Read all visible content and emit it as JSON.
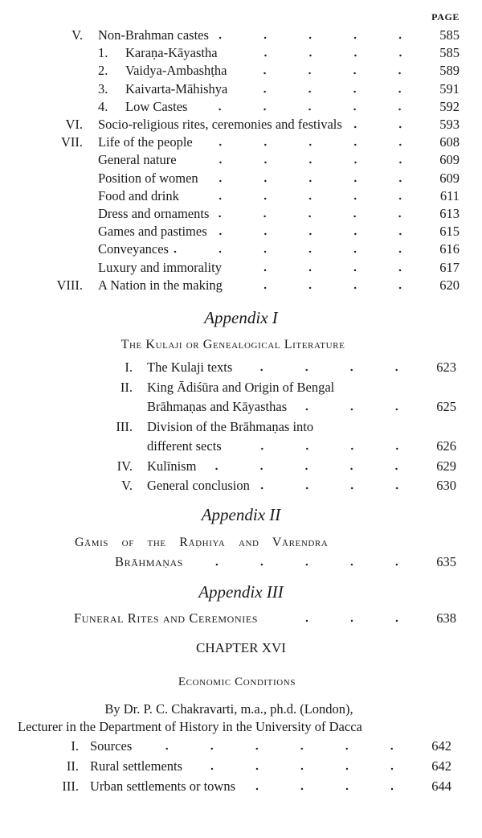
{
  "page_label": "PAGE",
  "section1": [
    {
      "num": "V.",
      "sub": "",
      "text": "Non-Brahman castes",
      "page": "585"
    },
    {
      "num": "",
      "sub": "1.",
      "text": "Karaṇa-Kāyastha",
      "page": "585"
    },
    {
      "num": "",
      "sub": "2.",
      "text": "Vaidya-Ambashṭha",
      "page": "589"
    },
    {
      "num": "",
      "sub": "3.",
      "text": "Kaivarta-Māhishya",
      "page": "591"
    },
    {
      "num": "",
      "sub": "4.",
      "text": "Low Castes",
      "page": "592"
    },
    {
      "num": "VI.",
      "sub": "",
      "text": "Socio-religious rites, ceremonies and festivals",
      "page": "593"
    },
    {
      "num": "VII.",
      "sub": "",
      "text": "Life of the people",
      "page": "608"
    },
    {
      "num": "",
      "sub": "",
      "text": "General nature",
      "page": "609"
    },
    {
      "num": "",
      "sub": "",
      "text": "Position of women",
      "page": "609"
    },
    {
      "num": "",
      "sub": "",
      "text": "Food and drink",
      "page": "611"
    },
    {
      "num": "",
      "sub": "",
      "text": "Dress and ornaments",
      "page": "613"
    },
    {
      "num": "",
      "sub": "",
      "text": "Games and pastimes",
      "page": "615"
    },
    {
      "num": "",
      "sub": "",
      "text": "Conveyances",
      "page": "616"
    },
    {
      "num": "",
      "sub": "",
      "text": "Luxury and immorality",
      "page": "617"
    },
    {
      "num": "VIII.",
      "sub": "",
      "text": "A Nation in the making",
      "page": "620"
    }
  ],
  "appendix1": {
    "heading": "Appendix I",
    "title": "The Kulaji or Genealogical Literature",
    "items": [
      {
        "num": "I.",
        "text": "The Kulaji texts",
        "page": "623"
      },
      {
        "num": "II.",
        "text": "King Ādiśūra and Origin of Bengal",
        "page": ""
      },
      {
        "num": "",
        "text": "Brāhmaṇas and Kāyasthas",
        "page": "625"
      },
      {
        "num": "III.",
        "text": "Division of the Brāhmaṇas into",
        "page": ""
      },
      {
        "num": "",
        "text": "different sects",
        "page": "626"
      },
      {
        "num": "IV.",
        "text": "Kulīnism",
        "page": "629"
      },
      {
        "num": "V.",
        "text": "General conclusion",
        "page": "630"
      }
    ]
  },
  "appendix2": {
    "heading": "Appendix II",
    "title_line1": "Gāmis of the Rāḍhiya and Vārendra",
    "title_line2": "Brāhmaṇas",
    "page": "635"
  },
  "appendix3": {
    "heading": "Appendix III",
    "title": "Funeral Rites and Ceremonies",
    "page": "638"
  },
  "chapter": {
    "heading": "CHAPTER XVI",
    "title": "Economic Conditions",
    "author": "By Dr. P. C. Chakravarti, m.a., ph.d. (London),",
    "affiliation": "Lecturer in the Department of History in the University of Dacca",
    "items": [
      {
        "num": "I.",
        "text": "Sources",
        "page": "642"
      },
      {
        "num": "II.",
        "text": "Rural settlements",
        "page": "642"
      },
      {
        "num": "III.",
        "text": "Urban settlements or towns",
        "page": "644"
      }
    ]
  }
}
